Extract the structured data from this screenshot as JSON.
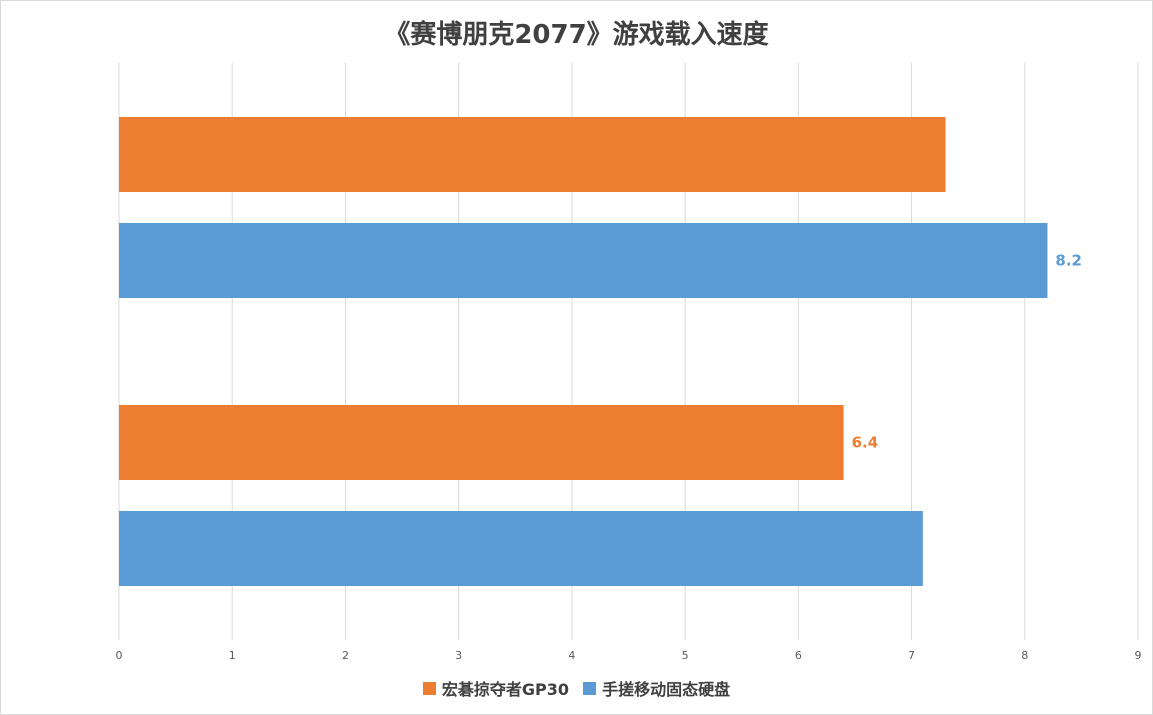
{
  "chart_data": {
    "type": "bar",
    "orientation": "horizontal",
    "title": "《赛博朋克2077》游戏载入速度",
    "xlabel": "",
    "ylabel": "",
    "xlim": [
      0,
      9
    ],
    "x_ticks": [
      "0",
      "1",
      "2",
      "3",
      "4",
      "5",
      "6",
      "7",
      "8",
      "9"
    ],
    "categories": [
      "",
      ""
    ],
    "series": [
      {
        "name": "宏碁掠夺者GP30",
        "color": "#ed7d31",
        "values": [
          7.3,
          6.4
        ],
        "labels": [
          "",
          "6.4"
        ]
      },
      {
        "name": "手搓移动固态硬盘",
        "color": "#5b9bd5",
        "values": [
          8.2,
          7.1
        ],
        "labels": [
          "8.2",
          ""
        ]
      }
    ],
    "grid": true,
    "legend_position": "bottom"
  }
}
